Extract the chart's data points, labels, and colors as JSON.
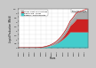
{
  "title": "",
  "xlabel": "Years",
  "ylabel": "Liquid Production (Mb/d)",
  "annotation_line1": "EIA 2013-2015",
  "annotation_line2": "Annual Update",
  "legend": [
    {
      "label": "Other Tight Oil countries",
      "color": "#aaaaaa"
    },
    {
      "label": "Eagle Ford - Texas",
      "color": "#cc2222"
    },
    {
      "label": "Bakken - North Dakota",
      "color": "#44cccc"
    }
  ],
  "fig_bg": "#c8c8c8",
  "plot_bg": "#ffffff",
  "x_min": 2000,
  "x_max": 2025,
  "y_min": 0,
  "y_max": 4.5,
  "yticks": [
    0,
    0.5,
    1.0,
    1.5,
    2.0,
    2.5,
    3.0,
    3.5,
    4.0,
    4.5
  ],
  "xticks": [
    2000,
    2002,
    2004,
    2006,
    2008,
    2010,
    2012,
    2014,
    2016,
    2018,
    2020,
    2022,
    2024
  ]
}
